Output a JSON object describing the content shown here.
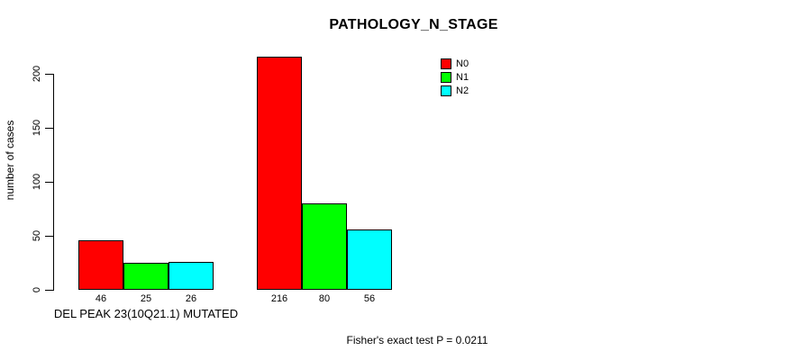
{
  "chart_data": {
    "type": "bar",
    "title": "PATHOLOGY_N_STAGE",
    "ylabel": "number of cases",
    "xlabel": "",
    "ylim": [
      0,
      220
    ],
    "yticks": [
      0,
      50,
      100,
      150,
      200
    ],
    "grid": false,
    "legend_position": "top-right-inside",
    "categories": [
      "DEL PEAK 23(10Q21.1) MUTATED",
      ""
    ],
    "series": [
      {
        "name": "N0",
        "color": "#FF0000",
        "values": [
          46,
          216
        ]
      },
      {
        "name": "N1",
        "color": "#00FF00",
        "values": [
          25,
          80
        ]
      },
      {
        "name": "N2",
        "color": "#00FFFF",
        "values": [
          26,
          56
        ]
      }
    ],
    "bar_value_labels_shown": true,
    "annotation": "Fisher's exact test P = 0.0211",
    "colors": {
      "background": "#FFFFFF",
      "axis": "#000000",
      "text": "#000000"
    }
  }
}
